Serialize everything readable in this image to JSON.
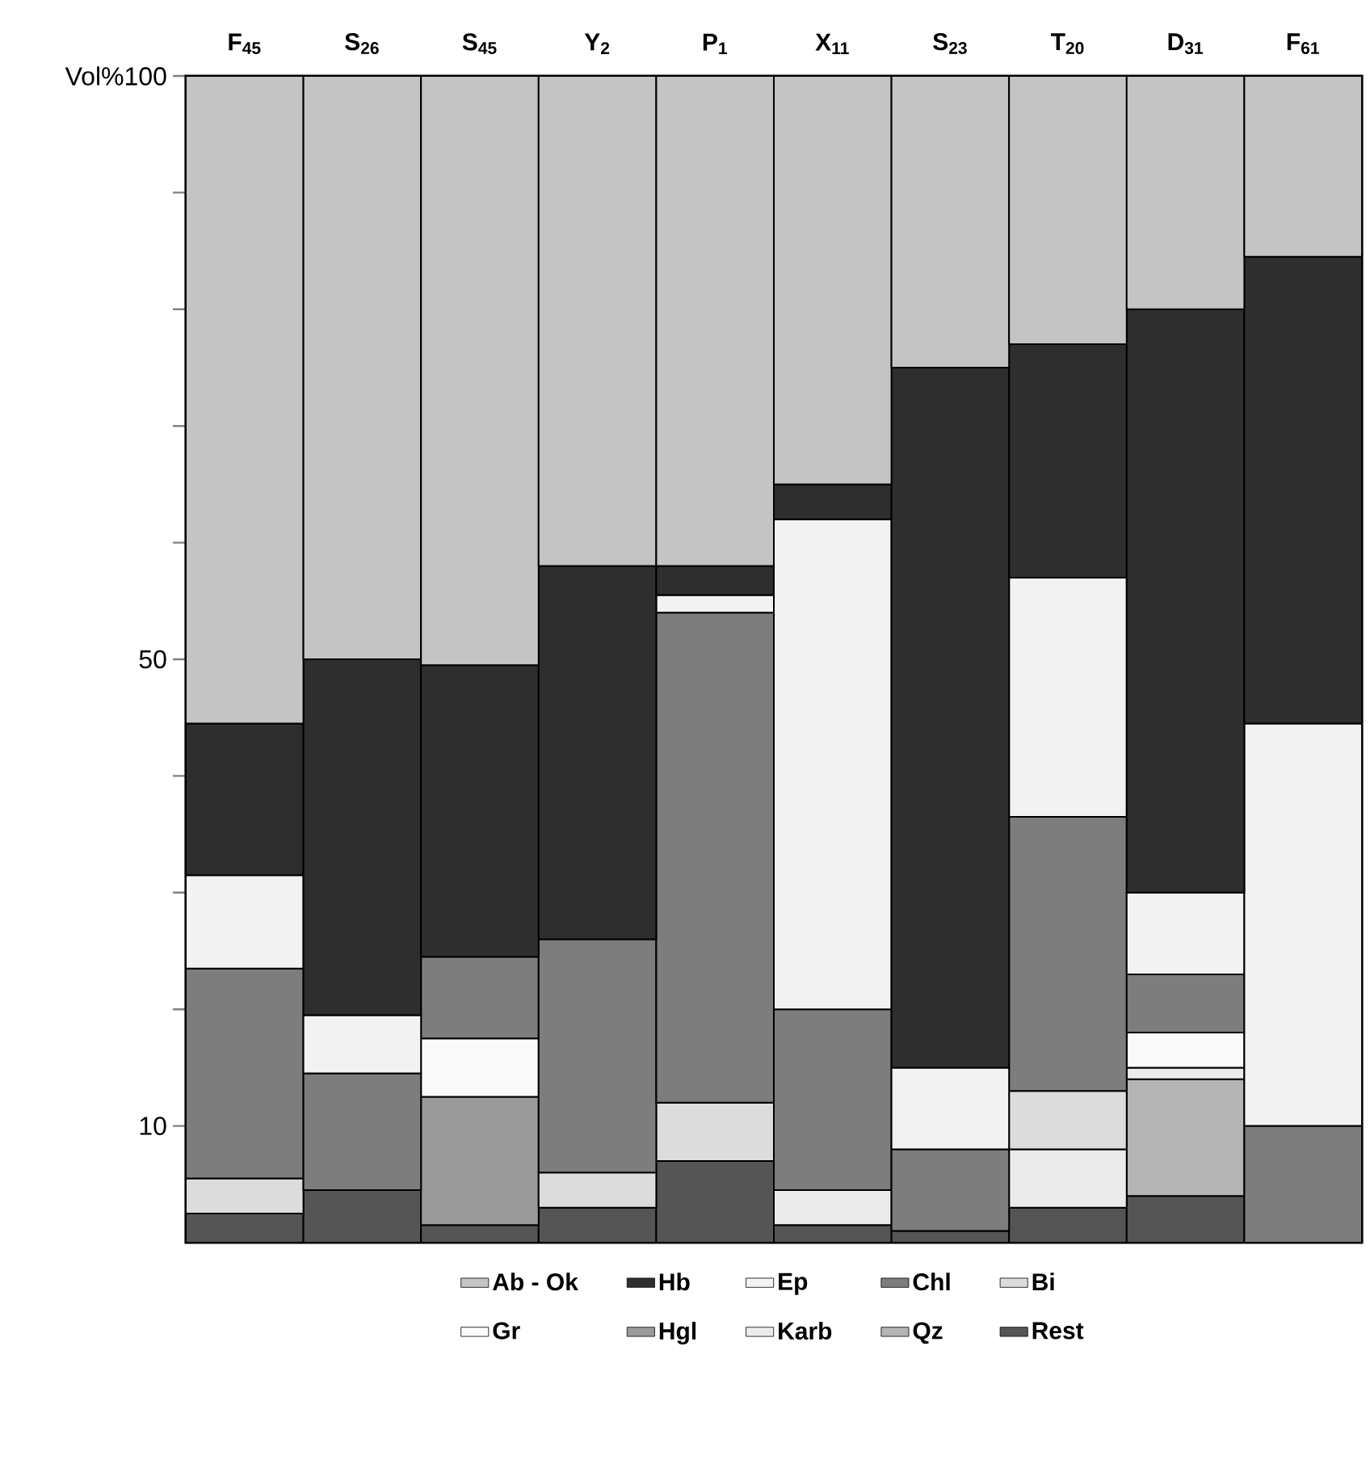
{
  "chart_data": {
    "type": "bar",
    "stacked": true,
    "categories": [
      "F$_{45}$",
      "S$_{26}$",
      "S$_{45}$",
      "Y$_{2}$",
      "P$_{1}$",
      "X$_{11}$",
      "S$_{23}$",
      "T$_{20}$",
      "D$_{31}$",
      "F$_{61}$"
    ],
    "series": [
      {
        "name": "Rest",
        "color": "#555555",
        "values": [
          2.5,
          4.5,
          1.5,
          3,
          7,
          1.5,
          1,
          3,
          4,
          null
        ]
      },
      {
        "name": "Qz",
        "color": "#b4b4b4",
        "values": [
          null,
          null,
          null,
          null,
          null,
          null,
          null,
          null,
          10,
          null
        ]
      },
      {
        "name": "Karb",
        "color": "#ebebeb",
        "values": [
          null,
          null,
          null,
          null,
          null,
          3,
          null,
          5,
          1,
          null
        ]
      },
      {
        "name": "Hgl",
        "color": "#9a9a9a",
        "values": [
          null,
          null,
          11,
          null,
          null,
          null,
          null,
          null,
          null,
          null
        ]
      },
      {
        "name": "Gr",
        "color": "#fafafa",
        "values": [
          null,
          null,
          5,
          null,
          null,
          null,
          null,
          null,
          3,
          null
        ]
      },
      {
        "name": "Bi",
        "color": "#dcdcdc",
        "values": [
          3,
          null,
          null,
          3,
          5,
          null,
          null,
          5,
          null,
          null
        ]
      },
      {
        "name": "Chl",
        "color": "#7d7d7d",
        "values": [
          18,
          10,
          7,
          20,
          42,
          15.5,
          7,
          23.5,
          5,
          10
        ]
      },
      {
        "name": "Ep",
        "color": "#f2f2f2",
        "values": [
          8,
          5,
          null,
          null,
          1.5,
          42,
          7,
          20.5,
          7,
          34.5
        ]
      },
      {
        "name": "Hb",
        "color": "#2e2e2e",
        "values": [
          13,
          30.5,
          25,
          32,
          2.5,
          3,
          60,
          20,
          50,
          40
        ]
      },
      {
        "name": "Ab - Ok",
        "color": "#c4c4c4",
        "values": [
          55.5,
          50,
          50.5,
          42,
          42,
          35,
          25,
          23,
          20,
          15.5
        ]
      }
    ],
    "ylim": [
      0,
      100
    ],
    "yticks": [
      10,
      {
        "value": 20,
        "label": null
      },
      {
        "value": 30,
        "label": null
      },
      {
        "value": 40,
        "label": null
      },
      50,
      {
        "value": 60,
        "label": null
      },
      {
        "value": 70,
        "label": null
      },
      {
        "value": 80,
        "label": null
      },
      {
        "value": 90,
        "label": null
      },
      {
        "value": 100,
        "label": "Vol%100"
      }
    ],
    "legend": "bottom"
  }
}
